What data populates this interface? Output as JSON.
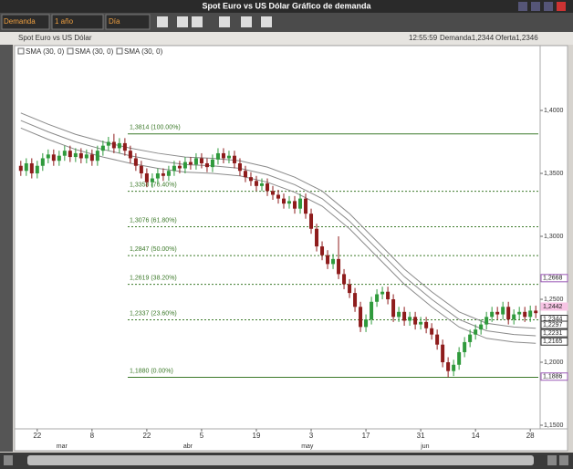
{
  "window": {
    "title": "Spot Euro vs US Dólar Gráfico de demanda"
  },
  "toolbar": {
    "price_type": "Demanda",
    "range": "1 año",
    "interval": "Día"
  },
  "chart_header": {
    "title": "Spot Euro vs US Dólar",
    "time": "12:55:59",
    "bid": "Demanda1,2344",
    "ask": "Oferta1,2346"
  },
  "legend": [
    "SMA (30, 0)",
    "SMA (30, 0)",
    "SMA (30, 0)"
  ],
  "chart_data": {
    "type": "candlestick",
    "up_color": "#2f9a3c",
    "down_color": "#8e1c1c",
    "x": [
      0,
      1,
      2,
      3,
      4,
      5,
      6,
      7,
      8,
      9,
      10,
      11,
      12,
      13,
      14,
      15,
      16,
      17,
      18,
      19,
      20,
      21,
      22,
      23,
      24,
      25,
      26,
      27,
      28,
      29,
      30,
      31,
      32,
      33,
      34,
      35,
      36,
      37,
      38,
      39,
      40,
      41,
      42,
      43,
      44,
      45,
      46,
      47,
      48,
      49,
      50,
      51,
      52,
      53,
      54,
      55,
      56,
      57,
      58,
      59,
      60,
      61,
      62,
      63,
      64,
      65,
      66,
      67,
      68,
      69,
      70,
      71,
      72,
      73,
      74,
      75,
      76,
      77,
      78,
      79,
      80,
      81,
      82,
      83,
      84,
      85,
      86,
      87,
      88,
      89,
      90,
      91,
      92,
      93,
      94
    ],
    "open": [
      1.356,
      1.352,
      1.358,
      1.35,
      1.356,
      1.362,
      1.365,
      1.36,
      1.364,
      1.368,
      1.363,
      1.366,
      1.362,
      1.365,
      1.36,
      1.368,
      1.372,
      1.375,
      1.37,
      1.374,
      1.368,
      1.362,
      1.356,
      1.35,
      1.343,
      1.346,
      1.35,
      1.348,
      1.352,
      1.356,
      1.354,
      1.359,
      1.357,
      1.362,
      1.358,
      1.355,
      1.361,
      1.366,
      1.362,
      1.364,
      1.358,
      1.352,
      1.347,
      1.344,
      1.34,
      1.342,
      1.336,
      1.333,
      1.33,
      1.326,
      1.328,
      1.322,
      1.33,
      1.318,
      1.306,
      1.292,
      1.285,
      1.278,
      1.282,
      1.27,
      1.262,
      1.255,
      1.244,
      1.228,
      1.234,
      1.248,
      1.254,
      1.256,
      1.25,
      1.236,
      1.24,
      1.233,
      1.236,
      1.23,
      1.232,
      1.227,
      1.222,
      1.214,
      1.2,
      1.193,
      1.198,
      1.208,
      1.216,
      1.222,
      1.226,
      1.23,
      1.236,
      1.24,
      1.238,
      1.244,
      1.234,
      1.238,
      1.24,
      1.236,
      1.241
    ],
    "high": [
      1.36,
      1.362,
      1.362,
      1.36,
      1.366,
      1.369,
      1.369,
      1.368,
      1.372,
      1.372,
      1.37,
      1.37,
      1.369,
      1.369,
      1.372,
      1.376,
      1.379,
      1.3814,
      1.378,
      1.378,
      1.372,
      1.366,
      1.36,
      1.354,
      1.35,
      1.354,
      1.354,
      1.356,
      1.36,
      1.36,
      1.363,
      1.363,
      1.366,
      1.366,
      1.362,
      1.365,
      1.37,
      1.37,
      1.368,
      1.368,
      1.362,
      1.356,
      1.351,
      1.348,
      1.346,
      1.346,
      1.34,
      1.337,
      1.334,
      1.332,
      1.332,
      1.334,
      1.334,
      1.322,
      1.31,
      1.296,
      1.289,
      1.286,
      1.3,
      1.274,
      1.266,
      1.259,
      1.248,
      1.238,
      1.252,
      1.258,
      1.26,
      1.26,
      1.254,
      1.244,
      1.244,
      1.24,
      1.24,
      1.236,
      1.236,
      1.231,
      1.226,
      1.218,
      1.204,
      1.202,
      1.212,
      1.22,
      1.226,
      1.23,
      1.234,
      1.24,
      1.244,
      1.244,
      1.248,
      1.248,
      1.242,
      1.244,
      1.244,
      1.245,
      1.245
    ],
    "low": [
      1.348,
      1.348,
      1.346,
      1.346,
      1.352,
      1.358,
      1.356,
      1.356,
      1.36,
      1.359,
      1.359,
      1.358,
      1.358,
      1.356,
      1.356,
      1.364,
      1.368,
      1.366,
      1.366,
      1.364,
      1.358,
      1.352,
      1.346,
      1.339,
      1.339,
      1.342,
      1.344,
      1.344,
      1.348,
      1.35,
      1.35,
      1.353,
      1.353,
      1.354,
      1.351,
      1.351,
      1.357,
      1.358,
      1.358,
      1.354,
      1.348,
      1.343,
      1.34,
      1.336,
      1.336,
      1.332,
      1.329,
      1.326,
      1.322,
      1.322,
      1.318,
      1.318,
      1.314,
      1.302,
      1.288,
      1.281,
      1.274,
      1.274,
      1.266,
      1.258,
      1.251,
      1.24,
      1.224,
      1.224,
      1.23,
      1.244,
      1.25,
      1.246,
      1.232,
      1.232,
      1.229,
      1.229,
      1.226,
      1.226,
      1.223,
      1.218,
      1.21,
      1.196,
      1.188,
      1.189,
      1.194,
      1.204,
      1.212,
      1.218,
      1.222,
      1.226,
      1.232,
      1.234,
      1.234,
      1.23,
      1.23,
      1.234,
      1.232,
      1.232,
      1.235
    ],
    "close": [
      1.352,
      1.358,
      1.35,
      1.356,
      1.362,
      1.365,
      1.36,
      1.364,
      1.368,
      1.363,
      1.366,
      1.362,
      1.365,
      1.36,
      1.368,
      1.372,
      1.375,
      1.37,
      1.374,
      1.368,
      1.362,
      1.356,
      1.35,
      1.343,
      1.346,
      1.35,
      1.348,
      1.352,
      1.356,
      1.354,
      1.359,
      1.357,
      1.362,
      1.358,
      1.355,
      1.361,
      1.366,
      1.362,
      1.364,
      1.358,
      1.352,
      1.347,
      1.344,
      1.34,
      1.342,
      1.336,
      1.333,
      1.33,
      1.326,
      1.328,
      1.322,
      1.33,
      1.318,
      1.306,
      1.292,
      1.285,
      1.278,
      1.282,
      1.27,
      1.262,
      1.255,
      1.244,
      1.228,
      1.234,
      1.248,
      1.254,
      1.256,
      1.25,
      1.236,
      1.24,
      1.233,
      1.236,
      1.23,
      1.232,
      1.227,
      1.222,
      1.214,
      1.2,
      1.193,
      1.198,
      1.208,
      1.216,
      1.222,
      1.226,
      1.23,
      1.236,
      1.24,
      1.238,
      1.244,
      1.234,
      1.238,
      1.24,
      1.236,
      1.241,
      1.239
    ],
    "sma_lines": {
      "color": "#8a8a8a",
      "x": [
        0,
        5,
        10,
        15,
        20,
        25,
        30,
        35,
        40,
        45,
        50,
        55,
        60,
        65,
        70,
        75,
        80,
        85,
        90,
        94
      ],
      "series": [
        {
          "values": [
            1.398,
            1.389,
            1.381,
            1.375,
            1.37,
            1.366,
            1.363,
            1.362,
            1.36,
            1.355,
            1.347,
            1.336,
            1.318,
            1.296,
            1.274,
            1.256,
            1.24,
            1.231,
            1.228,
            1.227
          ]
        },
        {
          "values": [
            1.392,
            1.383,
            1.375,
            1.369,
            1.364,
            1.36,
            1.357,
            1.356,
            1.354,
            1.349,
            1.341,
            1.33,
            1.312,
            1.29,
            1.268,
            1.25,
            1.234,
            1.225,
            1.222,
            1.221
          ]
        },
        {
          "values": [
            1.386,
            1.377,
            1.369,
            1.363,
            1.358,
            1.354,
            1.351,
            1.35,
            1.348,
            1.343,
            1.335,
            1.324,
            1.306,
            1.284,
            1.262,
            1.244,
            1.228,
            1.219,
            1.216,
            1.215
          ]
        }
      ]
    },
    "fib_color": "#3c7a2a",
    "fib_levels": [
      {
        "value": 1.3814,
        "label": "1,3814  (100.00%)"
      },
      {
        "value": 1.3358,
        "label": "1,3358  (76.40%)"
      },
      {
        "value": 1.3076,
        "label": "1,3076  (61.80%)"
      },
      {
        "value": 1.2847,
        "label": "1,2847  (50.00%)"
      },
      {
        "value": 1.2619,
        "label": "1,2619  (38.20%)"
      },
      {
        "value": 1.2337,
        "label": "1,2337  (23.60%)"
      },
      {
        "value": 1.188,
        "label": "1,1880  (0.00%)"
      }
    ],
    "xlim": [
      -0.8,
      94.8
    ],
    "xticks": [
      {
        "value": 3,
        "label": "22"
      },
      {
        "value": 13,
        "label": "8"
      },
      {
        "value": 23,
        "label": "22"
      },
      {
        "value": 33,
        "label": "5"
      },
      {
        "value": 43,
        "label": "19"
      },
      {
        "value": 53,
        "label": "3"
      },
      {
        "value": 63,
        "label": "17"
      },
      {
        "value": 73,
        "label": "31"
      },
      {
        "value": 83,
        "label": "14"
      },
      {
        "value": 93,
        "label": "28"
      }
    ],
    "month_labels": [
      {
        "value": 7.5,
        "label": "mar"
      },
      {
        "value": 30.5,
        "label": "abr"
      },
      {
        "value": 52.3,
        "label": "may"
      },
      {
        "value": 73.8,
        "label": "jun"
      }
    ],
    "ylim": [
      1.1471,
      1.4406
    ],
    "yticks": [
      {
        "value": 1.4,
        "label": "1,4000"
      },
      {
        "value": 1.35,
        "label": "1,3500"
      },
      {
        "value": 1.3,
        "label": "1,3000"
      },
      {
        "value": 1.25,
        "label": "1,2500"
      },
      {
        "value": 1.2,
        "label": "1,2000"
      },
      {
        "value": 1.15,
        "label": "1,1500"
      }
    ],
    "price_labels": [
      {
        "value": 1.2668,
        "label": "1,2668",
        "color": "#9b59b6"
      },
      {
        "value": 1.2442,
        "label": "1,2442",
        "color": "#f7c4e4"
      },
      {
        "value": 1.2344,
        "label": "1,2344",
        "color": "#ffffff"
      },
      {
        "value": 1.2297,
        "label": "1,2297",
        "color": "#ffffff"
      },
      {
        "value": 1.2231,
        "label": "1,2231",
        "color": "#ffffff"
      },
      {
        "value": 1.2165,
        "label": "1,2165",
        "color": "#ffffff"
      },
      {
        "value": 1.1886,
        "label": "1,1886",
        "color": "#9b59b6"
      }
    ]
  }
}
